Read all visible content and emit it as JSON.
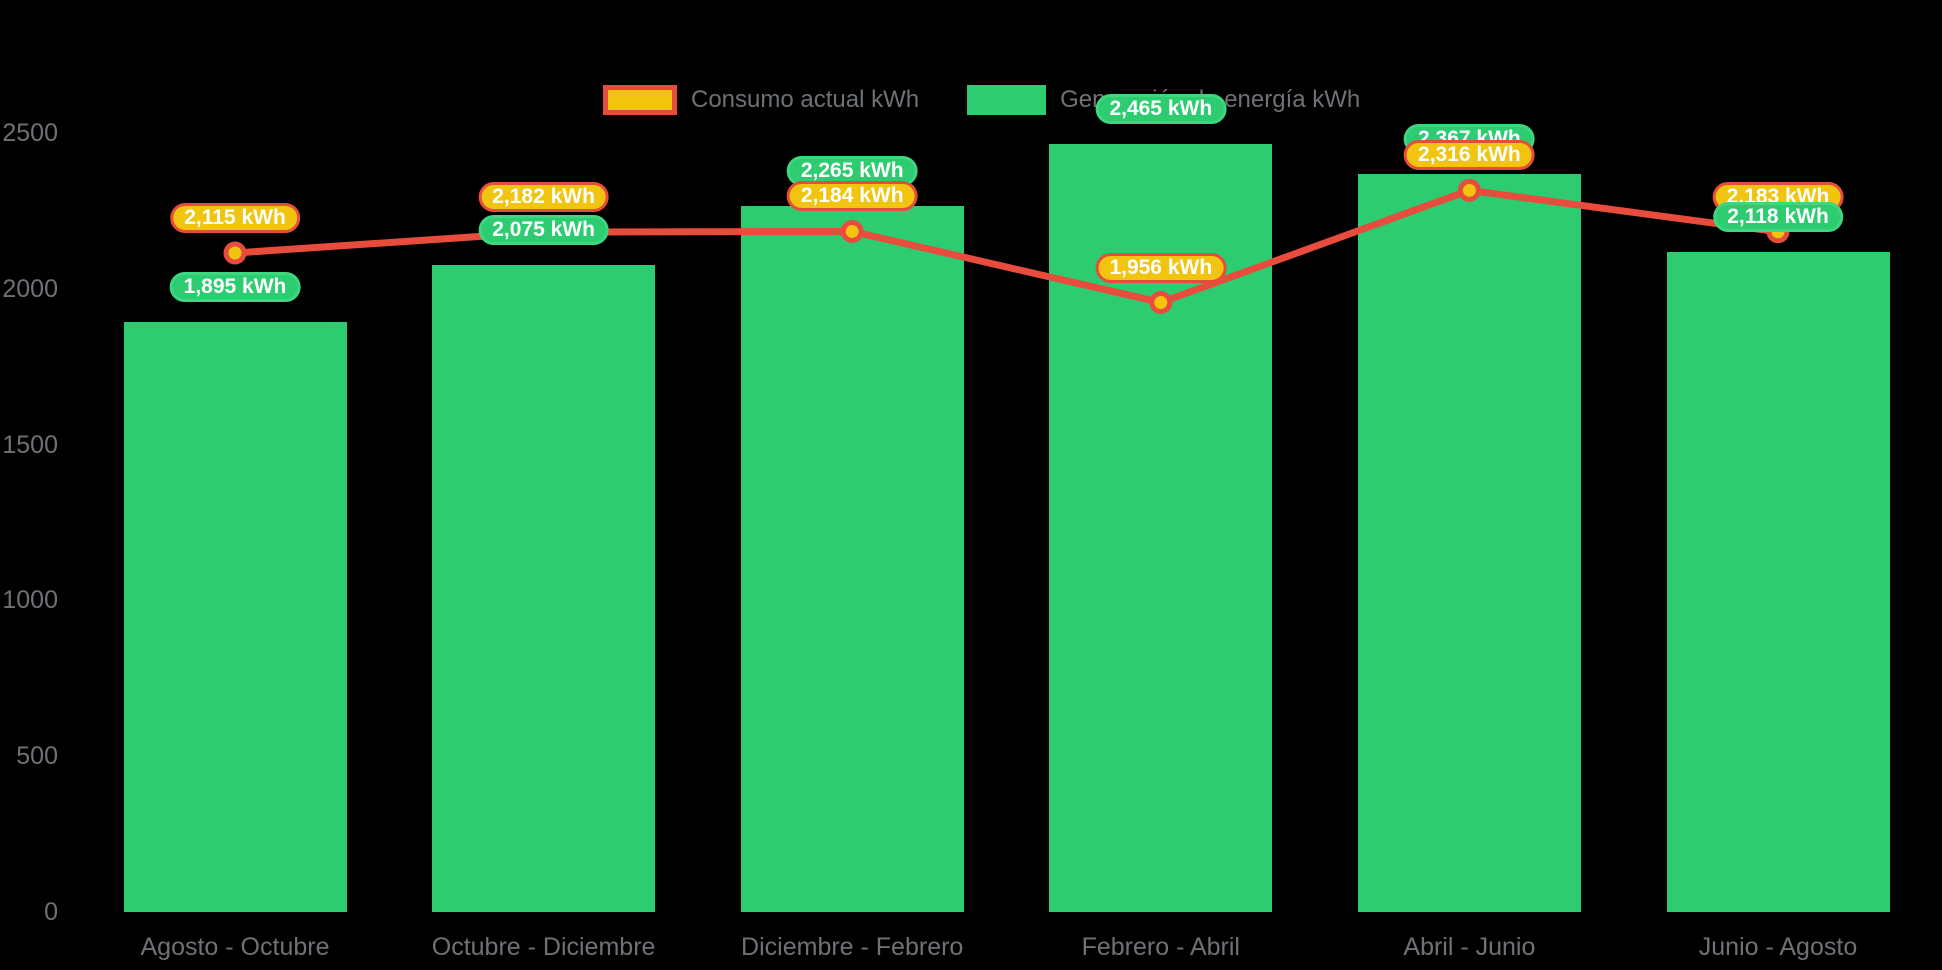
{
  "legend": {
    "items": [
      {
        "label": "Consumo actual kWh",
        "swatch": "yellow-fill-red-border"
      },
      {
        "label": "Generación de energía kWh",
        "swatch": "green-fill"
      }
    ]
  },
  "chart_data": {
    "type": "bar",
    "subtype": "combo-bar-line",
    "categories": [
      "Agosto - Octubre",
      "Octubre - Diciembre",
      "Diciembre - Febrero",
      "Febrero - Abril",
      "Abril - Junio",
      "Junio - Agosto"
    ],
    "series": [
      {
        "name": "Consumo actual kWh",
        "type": "line",
        "color": "#e74c3c",
        "point_fill": "#f1c40f",
        "values": [
          2115,
          2182,
          2184,
          1956,
          2316,
          2183
        ],
        "labels": [
          "2,115 kWh",
          "2,182 kWh",
          "2,184 kWh",
          "1,956 kWh",
          "2,316 kWh",
          "2,183 kWh"
        ]
      },
      {
        "name": "Generación de energía kWh",
        "type": "bar",
        "color": "#2ecc71",
        "values": [
          1895,
          2075,
          2265,
          2465,
          2367,
          2118
        ],
        "labels": [
          "1,895 kWh",
          "2,075 kWh",
          "2,265 kWh",
          "2,465 kWh",
          "2,367 kWh",
          "2,118 kWh"
        ]
      }
    ],
    "title": "",
    "xlabel": "",
    "ylabel": "",
    "ylim": [
      0,
      2500
    ],
    "yticks": [
      0,
      500,
      1000,
      1500,
      2000,
      2500
    ],
    "grid": false,
    "legend_position": "top",
    "background": "#000000",
    "text_color": "#6e7276",
    "label_unit": "kWh"
  }
}
